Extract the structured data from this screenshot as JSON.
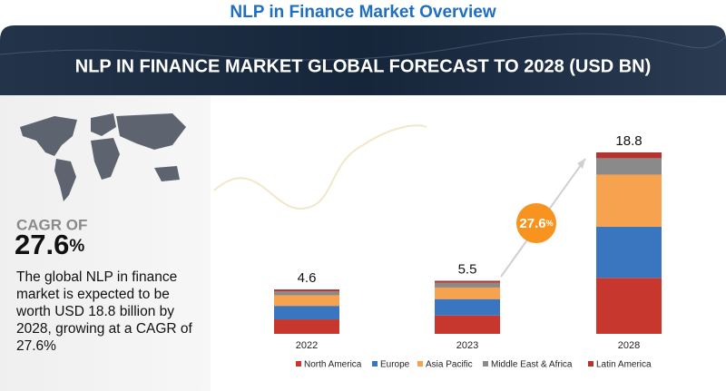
{
  "header": {
    "title": "NLP in Finance Market Overview",
    "banner": "NLP IN FINANCE MARKET GLOBAL FORECAST TO 2028 (USD BN)"
  },
  "side_panel": {
    "cagr_caption": "CAGR OF",
    "cagr_number": "27.6",
    "cagr_unit": "%",
    "description": "The global NLP in finance market is expected to be worth USD 18.8 billion by 2028, growing at a CAGR of 27.6%"
  },
  "chart_data": {
    "type": "bar",
    "stacked": true,
    "categories": [
      "2022",
      "2023",
      "2028"
    ],
    "series": [
      {
        "name": "North America",
        "color": "#c8372d",
        "values": [
          1.5,
          1.9,
          5.8
        ]
      },
      {
        "name": "Europe",
        "color": "#3a76c0",
        "values": [
          1.4,
          1.7,
          5.3
        ]
      },
      {
        "name": "Asia Pacific",
        "color": "#f7a24f",
        "values": [
          1.1,
          1.2,
          5.4
        ]
      },
      {
        "name": "Middle East & Africa",
        "color": "#8a8a8a",
        "values": [
          0.4,
          0.5,
          1.7
        ]
      },
      {
        "name": "Latin America",
        "color": "#b5342f",
        "values": [
          0.2,
          0.2,
          0.6
        ]
      }
    ],
    "totals": [
      4.6,
      5.5,
      18.8
    ],
    "growth_badge": {
      "number": "27.6",
      "unit": "%",
      "color": "#f7931e"
    },
    "legend": "bottom"
  }
}
